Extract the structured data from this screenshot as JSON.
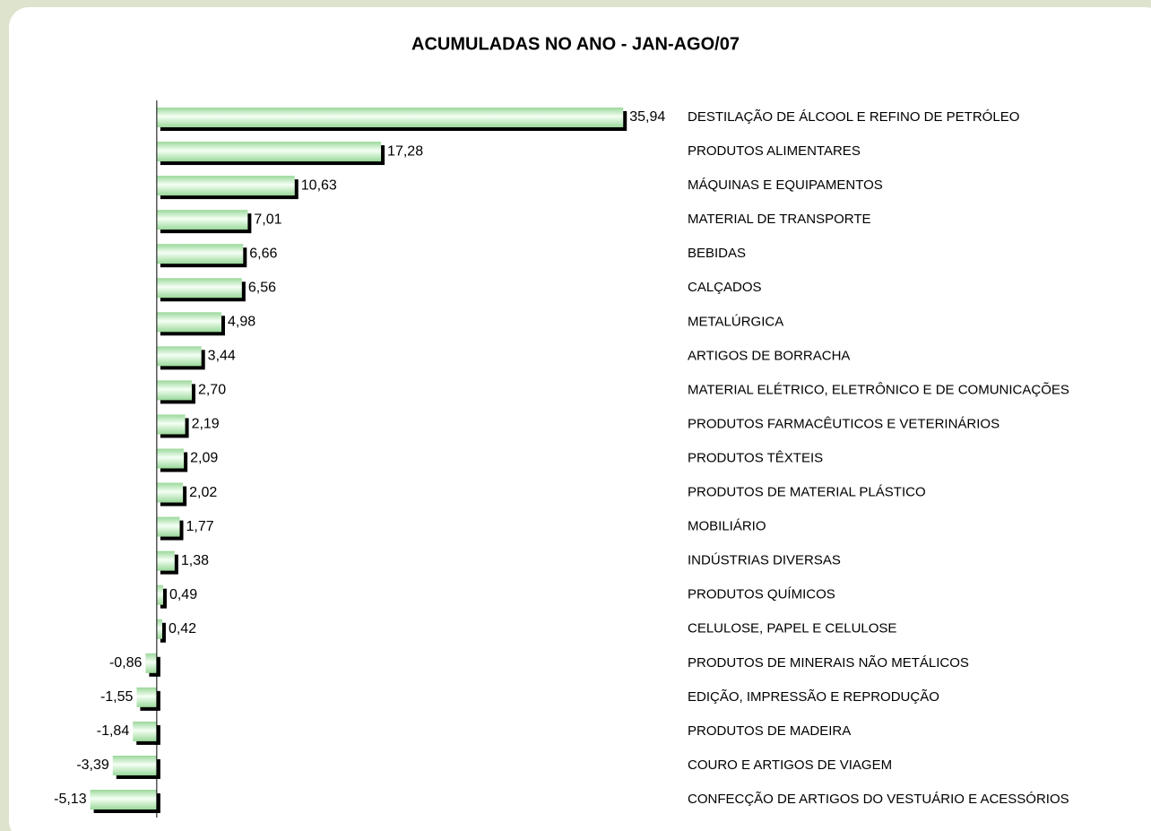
{
  "chart_data": {
    "type": "bar",
    "orientation": "horizontal",
    "title": "ACUMULADAS NO ANO -  JAN-AGO/07",
    "categories": [
      "DESTILAÇÃO DE ÁLCOOL E REFINO DE PETRÓLEO",
      "PRODUTOS ALIMENTARES",
      "MÁQUINAS E EQUIPAMENTOS",
      "MATERIAL DE TRANSPORTE",
      "BEBIDAS",
      "CALÇADOS",
      "METALÚRGICA",
      "ARTIGOS DE BORRACHA",
      "MATERIAL ELÉTRICO, ELETRÔNICO E DE COMUNICAÇÕES",
      "PRODUTOS FARMACÊUTICOS E VETERINÁRIOS",
      "PRODUTOS TÊXTEIS",
      "PRODUTOS DE MATERIAL PLÁSTICO",
      "MOBILIÁRIO",
      "INDÚSTRIAS DIVERSAS",
      "PRODUTOS QUÍMICOS",
      "CELULOSE, PAPEL E CELULOSE",
      "PRODUTOS DE MINERAIS NÃO METÁLICOS",
      "EDIÇÃO, IMPRESSÃO E REPRODUÇÃO",
      "PRODUTOS DE MADEIRA",
      "COURO E ARTIGOS DE VIAGEM",
      "CONFECÇÃO DE ARTIGOS DO VESTUÁRIO E ACESSÓRIOS"
    ],
    "values": [
      35.94,
      17.28,
      10.63,
      7.01,
      6.66,
      6.56,
      4.98,
      3.44,
      2.7,
      2.19,
      2.09,
      2.02,
      1.77,
      1.38,
      0.49,
      0.42,
      -0.86,
      -1.55,
      -1.84,
      -3.39,
      -5.13
    ],
    "value_labels": [
      "35,94",
      "17,28",
      "10,63",
      "7,01",
      "6,66",
      "6,56",
      "4,98",
      "3,44",
      "2,70",
      "2,19",
      "2,09",
      "2,02",
      "1,77",
      "1,38",
      "0,49",
      "0,42",
      "-0,86",
      "-1,55",
      "-1,84",
      "-3,39",
      "-5,13"
    ],
    "color": "#9ad89a",
    "xlim": [
      -6,
      40
    ]
  }
}
